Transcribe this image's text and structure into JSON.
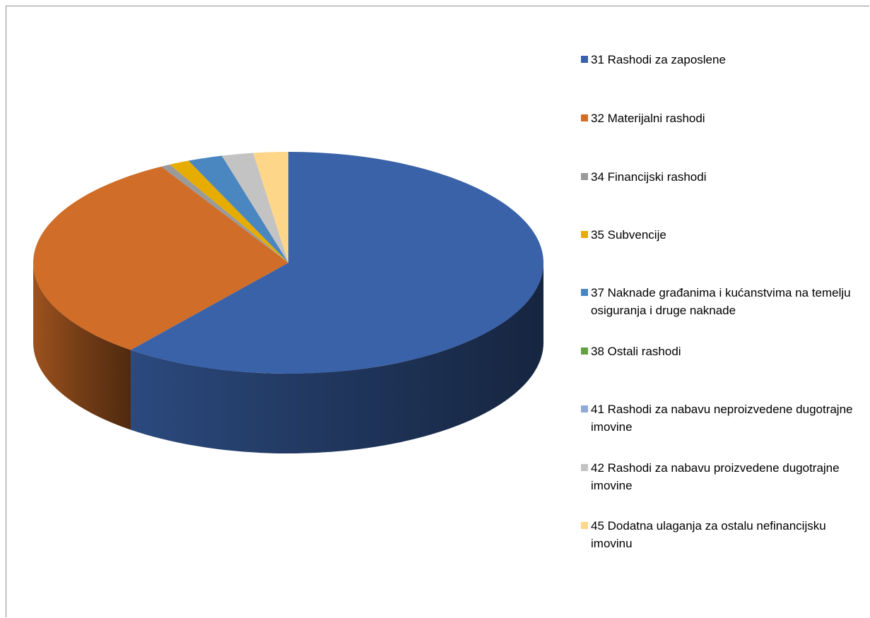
{
  "chart_data": {
    "type": "pie",
    "style": "3d",
    "title": "",
    "legend_position": "right",
    "series": [
      {
        "categories": [
          "31 Rashodi za zaposlene",
          "32 Materijalni rashodi",
          "34 Financijski rashodi",
          "35 Subvencije",
          "37 Naknade građanima i kućanstvima na temelju osiguranja i druge naknade",
          "38 Ostali rashodi",
          "41 Rashodi za nabavu neproizvedene dugotrajne imovine",
          "42 Rashodi za nabavu proizvedene dugotrajne imovine",
          "45 Dodatna ulaganja za ostalu nefinancijsku imovinu"
        ],
        "values": [
          60.6,
          31.1,
          0.6,
          1.3,
          2.2,
          0.0,
          0.0,
          2.0,
          2.2
        ]
      }
    ],
    "colors": [
      "#3a62a8",
      "#d06d28",
      "#9a9a9a",
      "#e6ac00",
      "#4a86bf",
      "#63a044",
      "#8fa9d8",
      "#c3c3c3",
      "#fdd68a"
    ]
  }
}
